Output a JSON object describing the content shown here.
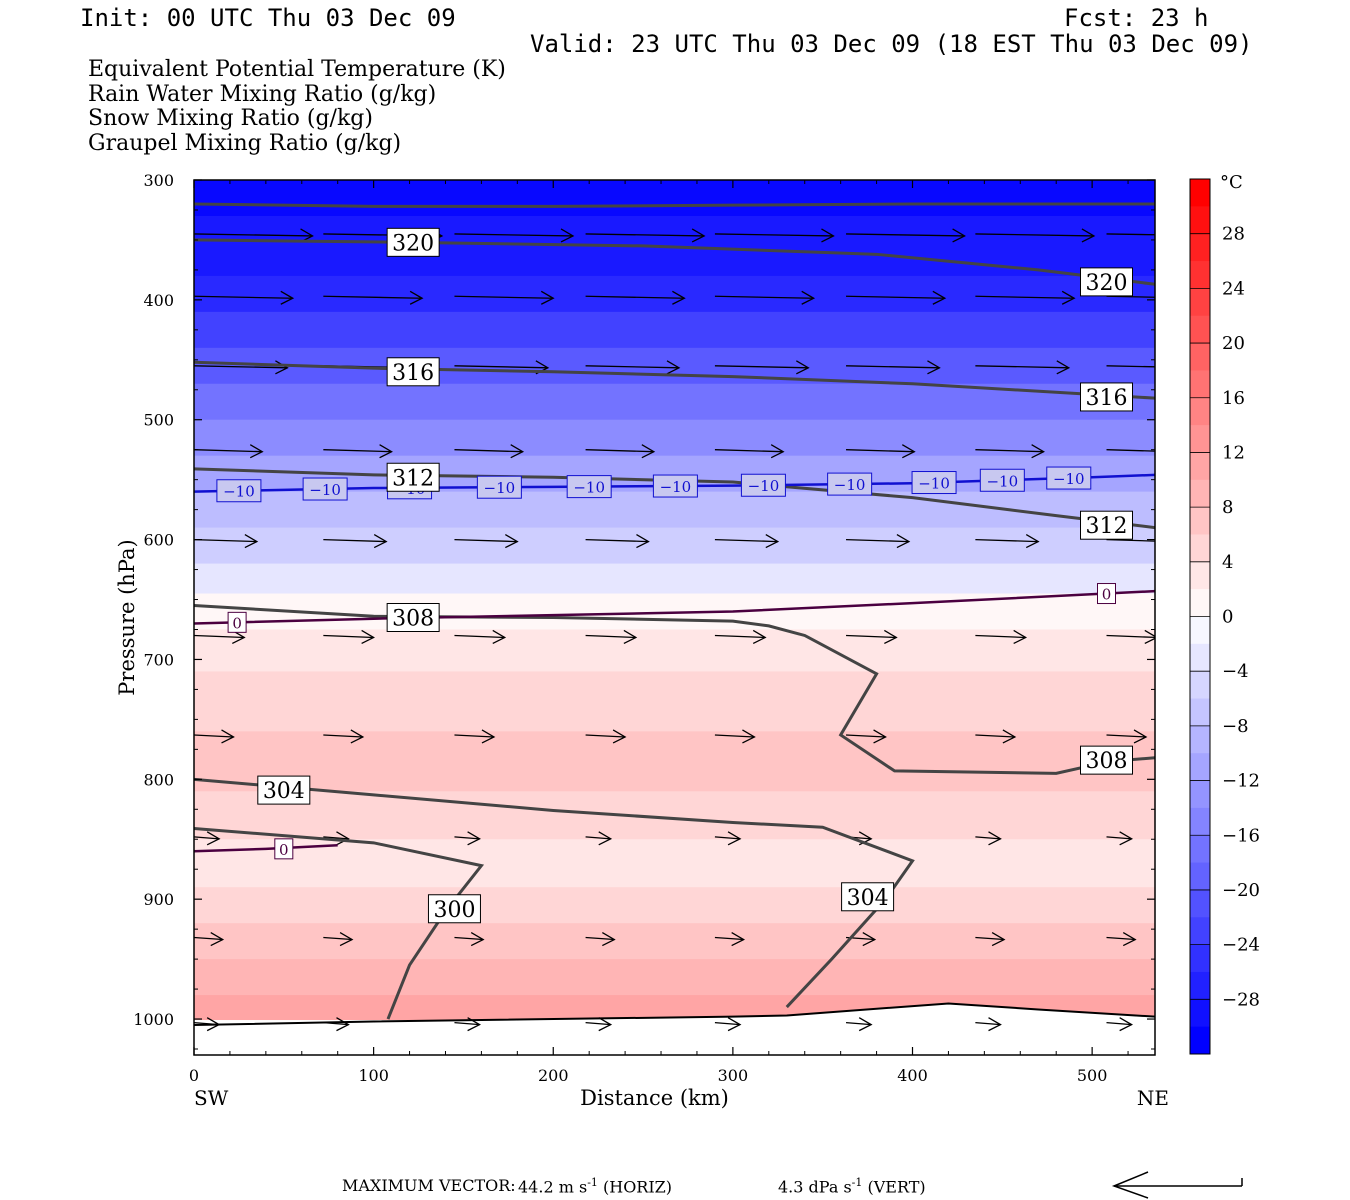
{
  "header": {
    "init": "Init: 00 UTC Thu 03 Dec 09",
    "fcst": "Fcst:   23 h",
    "valid": "Valid: 23 UTC Thu 03 Dec 09 (18 EST Thu 03 Dec 09)"
  },
  "legend": {
    "theta_e": "Equivalent Potential Temperature (K)",
    "rain": "Rain Water Mixing Ratio (g/kg)",
    "snow": "Snow Mixing Ratio (g/kg)",
    "graupel": "Graupel Mixing Ratio (g/kg)",
    "colors": {
      "theta_e": "#444444",
      "rain": "#008000",
      "snow": "#f4a460",
      "graupel": "#ee82ee"
    }
  },
  "footer": {
    "max_vector_label": "MAXIMUM VECTOR:",
    "horiz": "44.2 m s",
    "horiz_exp": "-1",
    "horiz_unit": " (HORIZ)",
    "vert": "4.3 dPa s",
    "vert_exp": "-1",
    "vert_unit": " (VERT)"
  },
  "chart_data": {
    "type": "heatmap",
    "xlabel": "Distance (km)",
    "ylabel": "Pressure (hPa)",
    "x_left_label": "SW",
    "x_right_label": "NE",
    "xlim": [
      0,
      535
    ],
    "ylim": [
      1030,
      300
    ],
    "x_ticks": [
      0,
      100,
      200,
      300,
      400,
      500
    ],
    "y_ticks": [
      300,
      400,
      500,
      600,
      700,
      800,
      900,
      1000
    ],
    "colorbar": {
      "unit": "°C",
      "min": -32,
      "max": 32,
      "tick_labels": [
        "28",
        "24",
        "20",
        "16",
        "12",
        "8",
        "4",
        "0",
        "−4",
        "−8",
        "−12",
        "−16",
        "−20",
        "−24",
        "−28"
      ],
      "tick_values": [
        28,
        24,
        20,
        16,
        12,
        8,
        4,
        0,
        -4,
        -8,
        -12,
        -16,
        -20,
        -24,
        -28
      ]
    },
    "temperature_bands": [
      {
        "p_top": 300,
        "p_bot": 330,
        "t": -30
      },
      {
        "p_top": 330,
        "p_bot": 380,
        "t": -28
      },
      {
        "p_top": 380,
        "p_bot": 410,
        "t": -26
      },
      {
        "p_top": 410,
        "p_bot": 440,
        "t": -23
      },
      {
        "p_top": 440,
        "p_bot": 470,
        "t": -20
      },
      {
        "p_top": 470,
        "p_bot": 500,
        "t": -17
      },
      {
        "p_top": 500,
        "p_bot": 530,
        "t": -14
      },
      {
        "p_top": 530,
        "p_bot": 560,
        "t": -11
      },
      {
        "p_top": 560,
        "p_bot": 590,
        "t": -8
      },
      {
        "p_top": 590,
        "p_bot": 620,
        "t": -6
      },
      {
        "p_top": 620,
        "p_bot": 645,
        "t": -3
      },
      {
        "p_top": 645,
        "p_bot": 675,
        "t": 1
      },
      {
        "p_top": 675,
        "p_bot": 710,
        "t": 3
      },
      {
        "p_top": 710,
        "p_bot": 760,
        "t": 5
      },
      {
        "p_top": 760,
        "p_bot": 810,
        "t": 7
      },
      {
        "p_top": 810,
        "p_bot": 850,
        "t": 5
      },
      {
        "p_top": 850,
        "p_bot": 890,
        "t": 3
      },
      {
        "p_top": 890,
        "p_bot": 920,
        "t": 5
      },
      {
        "p_top": 920,
        "p_bot": 950,
        "t": 7
      },
      {
        "p_top": 950,
        "p_bot": 980,
        "t": 9
      },
      {
        "p_top": 980,
        "p_bot": 1000,
        "t": 11
      }
    ],
    "terrain_surface": [
      [
        0,
        1005
      ],
      [
        100,
        1002
      ],
      [
        300,
        998
      ],
      [
        330,
        997
      ],
      [
        420,
        987
      ],
      [
        470,
        992
      ],
      [
        535,
        998
      ]
    ],
    "theta_e_contours": [
      {
        "label": "320",
        "points": [
          [
            0,
            320
          ],
          [
            100,
            322
          ],
          [
            200,
            322
          ],
          [
            300,
            321
          ],
          [
            400,
            320
          ],
          [
            535,
            320
          ]
        ]
      },
      {
        "label": "320",
        "points": [
          [
            0,
            350
          ],
          [
            120,
            352
          ],
          [
            250,
            355
          ],
          [
            380,
            362
          ],
          [
            470,
            375
          ],
          [
            535,
            387
          ]
        ]
      },
      {
        "label": "316",
        "points": [
          [
            0,
            452
          ],
          [
            100,
            457
          ],
          [
            200,
            460
          ],
          [
            300,
            464
          ],
          [
            400,
            470
          ],
          [
            535,
            482
          ]
        ]
      },
      {
        "label": "312",
        "points": [
          [
            0,
            541
          ],
          [
            100,
            546
          ],
          [
            200,
            548
          ],
          [
            300,
            552
          ],
          [
            400,
            565
          ],
          [
            480,
            580
          ],
          [
            535,
            590
          ]
        ]
      },
      {
        "label": "308",
        "points": [
          [
            0,
            655
          ],
          [
            100,
            664
          ],
          [
            200,
            665
          ],
          [
            300,
            668
          ],
          [
            320,
            672
          ],
          [
            340,
            680
          ],
          [
            380,
            712
          ],
          [
            360,
            763
          ],
          [
            390,
            793
          ],
          [
            480,
            795
          ],
          [
            510,
            785
          ],
          [
            535,
            782
          ]
        ]
      },
      {
        "label": "304",
        "points": [
          [
            0,
            800
          ],
          [
            100,
            813
          ],
          [
            200,
            826
          ],
          [
            300,
            836
          ],
          [
            350,
            840
          ],
          [
            400,
            868
          ],
          [
            385,
            900
          ],
          [
            355,
            950
          ],
          [
            330,
            990
          ]
        ]
      },
      {
        "label": "300",
        "points": [
          [
            0,
            841
          ],
          [
            100,
            853
          ],
          [
            160,
            872
          ],
          [
            140,
            910
          ],
          [
            120,
            955
          ],
          [
            108,
            1000
          ]
        ]
      }
    ],
    "contour_labels": [
      {
        "text": "320",
        "x": 122,
        "p": 352
      },
      {
        "text": "320",
        "x": 508,
        "p": 385
      },
      {
        "text": "316",
        "x": 122,
        "p": 460
      },
      {
        "text": "316",
        "x": 508,
        "p": 481
      },
      {
        "text": "312",
        "x": 122,
        "p": 548
      },
      {
        "text": "312",
        "x": 508,
        "p": 588
      },
      {
        "text": "308",
        "x": 122,
        "p": 665
      },
      {
        "text": "308",
        "x": 508,
        "p": 784
      },
      {
        "text": "304",
        "x": 50,
        "p": 809
      },
      {
        "text": "304",
        "x": 375,
        "p": 898
      },
      {
        "text": "300",
        "x": 145,
        "p": 908
      }
    ],
    "isotherm_minus10": {
      "points": [
        [
          0,
          560
        ],
        [
          100,
          557
        ],
        [
          200,
          556
        ],
        [
          300,
          555
        ],
        [
          400,
          553
        ],
        [
          500,
          548
        ],
        [
          535,
          546
        ]
      ],
      "label": "−10",
      "label_x": [
        25,
        73,
        120,
        170,
        220,
        268,
        317,
        365,
        412,
        450,
        487
      ]
    },
    "isotherm_zero_upper": {
      "points": [
        [
          0,
          670
        ],
        [
          100,
          666
        ],
        [
          200,
          663
        ],
        [
          300,
          660
        ],
        [
          400,
          653
        ],
        [
          535,
          643
        ]
      ],
      "label": "0",
      "label_xs": [
        24,
        508
      ]
    },
    "isotherm_zero_lower": {
      "points": [
        [
          0,
          860
        ],
        [
          40,
          858
        ],
        [
          80,
          855
        ]
      ],
      "label": "0",
      "label_x": 50,
      "label_p": 858
    },
    "wind_rows": [
      {
        "p": 345,
        "len_km": 66
      },
      {
        "p": 397,
        "len_km": 55
      },
      {
        "p": 455,
        "len_km": 52
      },
      {
        "p": 525,
        "len_km": 38
      },
      {
        "p": 600,
        "len_km": 35
      },
      {
        "p": 680,
        "len_km": 28
      },
      {
        "p": 763,
        "len_km": 22
      },
      {
        "p": 848,
        "len_km": 14
      },
      {
        "p": 932,
        "len_km": 16
      },
      {
        "p": 1003,
        "len_km": 14
      }
    ],
    "wind_columns_km": [
      0,
      72,
      145,
      218,
      290,
      363,
      435,
      508
    ]
  }
}
